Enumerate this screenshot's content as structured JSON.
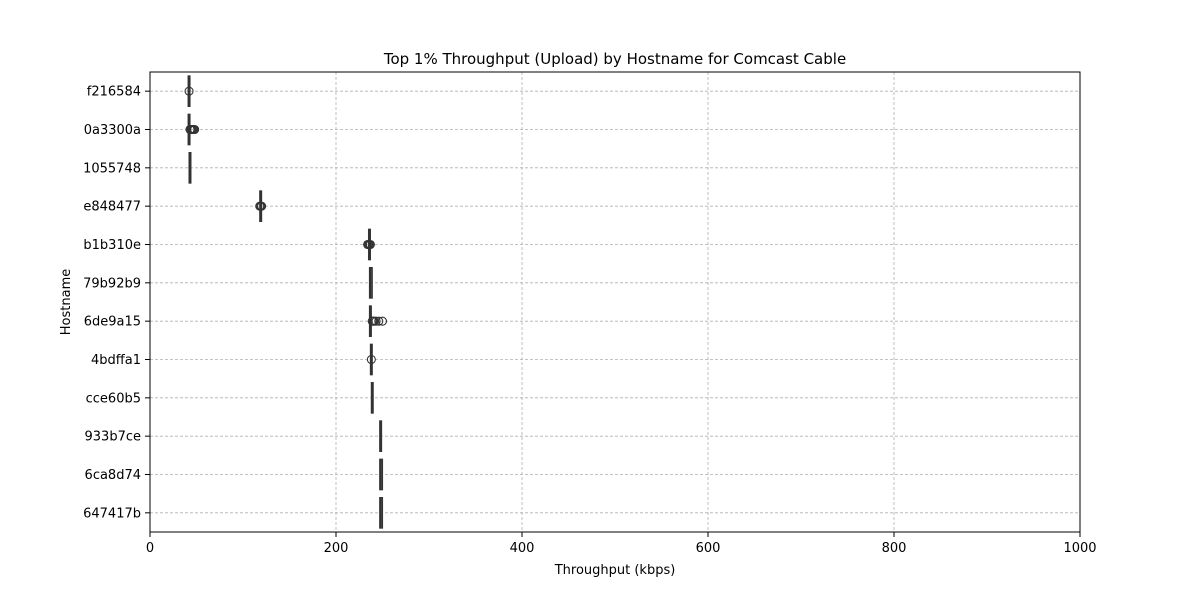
{
  "chart_data": {
    "type": "box",
    "orientation": "horizontal",
    "title": "Top 1% Throughput (Upload) by Hostname for Comcast Cable",
    "xlabel": "Throughput (kbps)",
    "ylabel": "Hostname",
    "xlim": [
      0,
      1000
    ],
    "xticks": [
      0,
      200,
      400,
      600,
      800,
      1000
    ],
    "grid": true,
    "colors": {
      "box": "#333333",
      "grid": "#b0b0b0"
    },
    "categories": [
      "f216584",
      "0a3300a",
      "1055748",
      "e848477",
      "b1b310e",
      "79b92b9",
      "6de9a15",
      "4bdffa1",
      "cce60b5",
      "933b7ce",
      "6ca8d74",
      "647417b"
    ],
    "boxes": [
      {
        "name": "f216584",
        "whisker_low": 42,
        "q1": 42,
        "median": 42,
        "q3": 42,
        "whisker_high": 42,
        "outliers": [
          42
        ]
      },
      {
        "name": "0a3300a",
        "whisker_low": 42,
        "q1": 42,
        "median": 42,
        "q3": 42,
        "whisker_high": 42,
        "outliers": [
          43,
          44,
          45,
          46,
          47,
          48
        ]
      },
      {
        "name": "1055748",
        "whisker_low": 43,
        "q1": 43,
        "median": 43,
        "q3": 43,
        "whisker_high": 43,
        "outliers": []
      },
      {
        "name": "e848477",
        "whisker_low": 119,
        "q1": 119,
        "median": 119,
        "q3": 119,
        "whisker_high": 119,
        "outliers": [
          118,
          119,
          120
        ]
      },
      {
        "name": "b1b310e",
        "whisker_low": 236,
        "q1": 236,
        "median": 236,
        "q3": 236,
        "whisker_high": 236,
        "outliers": [
          234,
          235,
          236,
          237
        ]
      },
      {
        "name": "79b92b9",
        "whisker_low": 237,
        "q1": 237,
        "median": 237,
        "q3": 238,
        "whisker_high": 238,
        "outliers": []
      },
      {
        "name": "6de9a15",
        "whisker_low": 237,
        "q1": 237,
        "median": 237,
        "q3": 237,
        "whisker_high": 237,
        "outliers": [
          239,
          240,
          241,
          243,
          246,
          250
        ]
      },
      {
        "name": "4bdffa1",
        "whisker_low": 238,
        "q1": 238,
        "median": 238,
        "q3": 238,
        "whisker_high": 238,
        "outliers": [
          238
        ]
      },
      {
        "name": "cce60b5",
        "whisker_low": 239,
        "q1": 239,
        "median": 239,
        "q3": 239,
        "whisker_high": 239,
        "outliers": []
      },
      {
        "name": "933b7ce",
        "whisker_low": 248,
        "q1": 248,
        "median": 248,
        "q3": 248,
        "whisker_high": 248,
        "outliers": []
      },
      {
        "name": "6ca8d74",
        "whisker_low": 248,
        "q1": 248,
        "median": 248,
        "q3": 249,
        "whisker_high": 249,
        "outliers": []
      },
      {
        "name": "647417b",
        "whisker_low": 248,
        "q1": 248,
        "median": 248,
        "q3": 249,
        "whisker_high": 249,
        "outliers": []
      }
    ]
  }
}
